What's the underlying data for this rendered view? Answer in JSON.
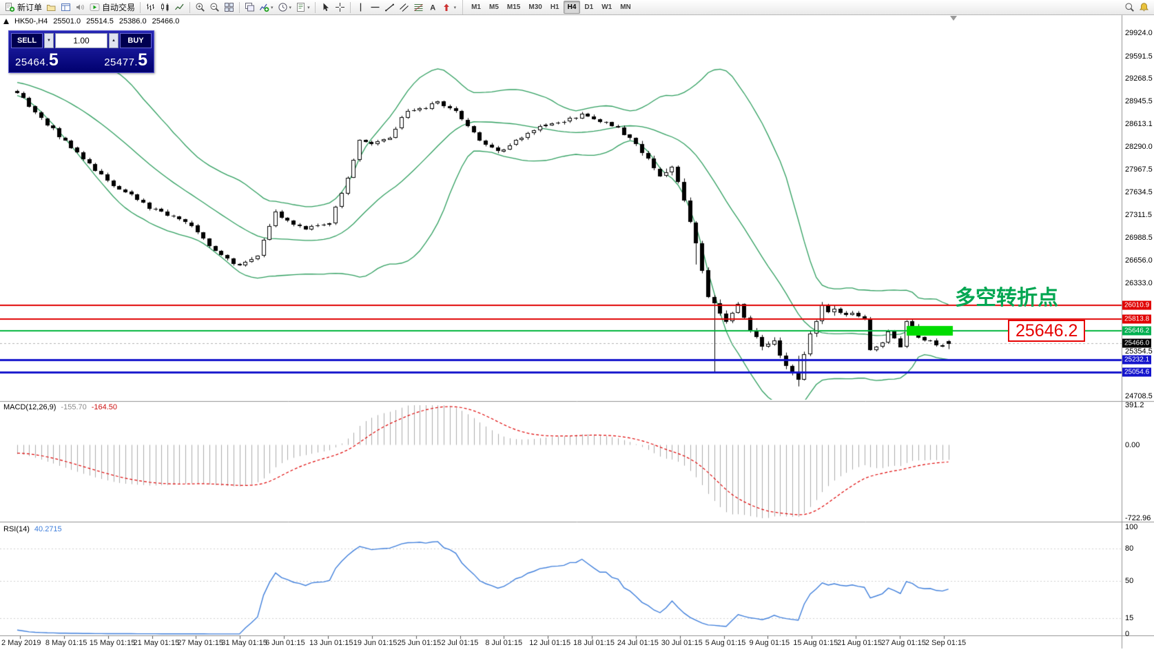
{
  "toolbar": {
    "groups": [
      {
        "items": [
          {
            "name": "new-order-button",
            "icon": "new-order",
            "label": "新订单"
          },
          {
            "name": "chart-profiles-button",
            "icon": "profiles"
          },
          {
            "name": "data-window-button",
            "icon": "data-window"
          },
          {
            "name": "sound-alerts-button",
            "icon": "sound"
          },
          {
            "name": "autotrading-button",
            "icon": "autotrading",
            "label": "自动交易"
          }
        ]
      },
      {
        "items": [
          {
            "name": "bar-chart-button",
            "icon": "bars"
          },
          {
            "name": "candlestick-chart-button",
            "icon": "candles"
          },
          {
            "name": "line-chart-button",
            "icon": "line"
          }
        ]
      },
      {
        "items": [
          {
            "name": "zoom-in-button",
            "icon": "zoom-in"
          },
          {
            "name": "zoom-out-button",
            "icon": "zoom-out"
          },
          {
            "name": "tile-windows-button",
            "icon": "tile"
          }
        ]
      },
      {
        "items": [
          {
            "name": "arrange-windows-button",
            "icon": "arrange"
          },
          {
            "name": "indicators-button",
            "icon": "indicators",
            "dropdown": true
          },
          {
            "name": "periods-button",
            "icon": "clock",
            "dropdown": true
          },
          {
            "name": "templates-button",
            "icon": "template",
            "dropdown": true
          }
        ]
      },
      {
        "items": [
          {
            "name": "cursor-button",
            "icon": "cursor"
          },
          {
            "name": "crosshair-button",
            "icon": "crosshair"
          }
        ]
      },
      {
        "items": [
          {
            "name": "vertical-line-button",
            "icon": "vline"
          },
          {
            "name": "horizontal-line-button",
            "icon": "hline"
          },
          {
            "name": "trendline-button",
            "icon": "trendline"
          },
          {
            "name": "channel-button",
            "icon": "channel"
          },
          {
            "name": "fibonacci-button",
            "icon": "fibo"
          },
          {
            "name": "text-button",
            "icon": "text"
          },
          {
            "name": "arrows-button",
            "icon": "arrows",
            "dropdown": true
          }
        ]
      }
    ],
    "timeframes": {
      "options": [
        "M1",
        "M5",
        "M15",
        "M30",
        "H1",
        "H4",
        "D1",
        "W1",
        "MN"
      ],
      "active": "H4"
    },
    "right_icons": [
      {
        "name": "search-button",
        "icon": "search"
      },
      {
        "name": "notifications-button",
        "icon": "bell"
      }
    ]
  },
  "chart_header": {
    "symbol_period": "HK50-,H4",
    "open": "25501.0",
    "high": "25514.5",
    "low": "25386.0",
    "close": "25466.0"
  },
  "one_click": {
    "sell_label": "SELL",
    "buy_label": "BUY",
    "volume": "1.00",
    "sell_price": "25464.5",
    "buy_price": "25477.5"
  },
  "annotations": {
    "turning_point_text": "多空转折点",
    "price_callout": "25646.2",
    "highlight_color": "#00DC00"
  },
  "price_axis": {
    "plain_labels": [
      "29924.0",
      "29591.5",
      "29268.5",
      "28945.5",
      "28613.1",
      "28290.0",
      "27967.5",
      "27634.5",
      "27311.5",
      "26988.5",
      "26656.0",
      "26333.0",
      "25354.5",
      "24708.5"
    ],
    "boxed_labels": [
      {
        "text": "26010.9",
        "bg": "#E00000"
      },
      {
        "text": "25813.8",
        "bg": "#E00000"
      },
      {
        "text": "25646.2",
        "bg": "#00B050"
      },
      {
        "text": "25466.0",
        "bg": "#000000"
      },
      {
        "text": "25232.1",
        "bg": "#1414CC"
      },
      {
        "text": "25054.6",
        "bg": "#1414CC"
      }
    ]
  },
  "hlines": [
    {
      "price": 26010.9,
      "color": "#E00000",
      "width": 2
    },
    {
      "price": 25813.8,
      "color": "#E00000",
      "width": 2
    },
    {
      "price": 25646.2,
      "color": "#00B43C",
      "width": 2
    },
    {
      "price": 25232.1,
      "color": "#1414CC",
      "width": 3
    },
    {
      "price": 25054.6,
      "color": "#1414CC",
      "width": 3
    }
  ],
  "macd": {
    "label": "MACD(12,26,9)",
    "value": "-155.70",
    "signal_value": "-164.50",
    "axis_labels": [
      "391.2",
      "0.00",
      "-722.96"
    ],
    "scale_max": 391.2,
    "scale_min": -722.96,
    "histogram_color": "#ABABAB",
    "signal_color": "#DE0000"
  },
  "rsi": {
    "label": "RSI(14)",
    "value": "40.2715",
    "axis_labels": [
      "100",
      "80",
      "50",
      "15",
      "0"
    ],
    "levels": [
      80,
      50,
      15
    ],
    "line_color": "#3E7EDB"
  },
  "time_axis": {
    "labels": [
      "2 May 2019",
      "8 May 01:15",
      "15 May 01:15",
      "21 May 01:15",
      "27 May 01:15",
      "31 May 01:15",
      "6 Jun 01:15",
      "13 Jun 01:15",
      "19 Jun 01:15",
      "25 Jun 01:15",
      "2 Jul 01:15",
      "8 Jul 01:15",
      "12 Jul 01:15",
      "18 Jul 01:15",
      "24 Jul 01:15",
      "30 Jul 01:15",
      "5 Aug 01:15",
      "9 Aug 01:15",
      "15 Aug 01:15",
      "21 Aug 01:15",
      "27 Aug 01:15",
      "2 Sep 01:15"
    ]
  },
  "chart_data": {
    "type": "candlestick",
    "symbol": "HK50-",
    "period": "H4",
    "title": "HK50-,H4",
    "y_range": [
      24708.5,
      29924.0
    ],
    "x_range": [
      "2 May 2019",
      "2 Sep 2019"
    ],
    "num_candles": 156,
    "last_ohlc": {
      "open": 25501.0,
      "high": 25514.5,
      "low": 25386.0,
      "close": 25466.0
    },
    "close_anchors": [
      [
        0,
        29070
      ],
      [
        4,
        28700
      ],
      [
        9,
        28275
      ],
      [
        15,
        27795
      ],
      [
        22,
        27423
      ],
      [
        28,
        27210
      ],
      [
        34,
        26731
      ],
      [
        37,
        26572
      ],
      [
        40,
        26731
      ],
      [
        43,
        27370
      ],
      [
        45,
        27210
      ],
      [
        48,
        27104
      ],
      [
        52,
        27210
      ],
      [
        55,
        27849
      ],
      [
        57,
        28381
      ],
      [
        59,
        28328
      ],
      [
        62,
        28434
      ],
      [
        65,
        28807
      ],
      [
        68,
        28860
      ],
      [
        70,
        28913
      ],
      [
        73,
        28807
      ],
      [
        77,
        28381
      ],
      [
        80,
        28221
      ],
      [
        83,
        28381
      ],
      [
        85,
        28487
      ],
      [
        88,
        28594
      ],
      [
        90,
        28647
      ],
      [
        94,
        28753
      ],
      [
        96,
        28700
      ],
      [
        99,
        28594
      ],
      [
        102,
        28434
      ],
      [
        105,
        28115
      ],
      [
        107,
        27902
      ],
      [
        109,
        28040
      ],
      [
        111,
        27529
      ],
      [
        113,
        26891
      ],
      [
        115,
        26146
      ],
      [
        117,
        25880
      ],
      [
        118,
        25827
      ],
      [
        120,
        25987
      ],
      [
        122,
        25667
      ],
      [
        124,
        25454
      ],
      [
        126,
        25486
      ],
      [
        128,
        25135
      ],
      [
        130,
        24922
      ],
      [
        131,
        25295
      ],
      [
        132,
        25614
      ],
      [
        134,
        26000
      ],
      [
        137,
        25900
      ],
      [
        139,
        25880
      ],
      [
        141,
        25800
      ],
      [
        142,
        25350
      ],
      [
        144,
        25500
      ],
      [
        145,
        25640
      ],
      [
        147,
        25420
      ],
      [
        148,
        25790
      ],
      [
        149,
        25720
      ],
      [
        150,
        25580
      ],
      [
        152,
        25500
      ],
      [
        153,
        25440
      ],
      [
        154,
        25410
      ],
      [
        155,
        25466
      ]
    ],
    "wick_overrides": [
      [
        113,
        27050,
        26600
      ],
      [
        116,
        26150,
        25060
      ],
      [
        130,
        25290,
        24850
      ]
    ],
    "indicators": [
      "Bollinger Bands(20,2)",
      "MACD(12,26,9)",
      "RSI(14)"
    ],
    "bands_color": "#2E9E5E",
    "bull_color": "#FFFFFF",
    "bear_color": "#000000"
  }
}
